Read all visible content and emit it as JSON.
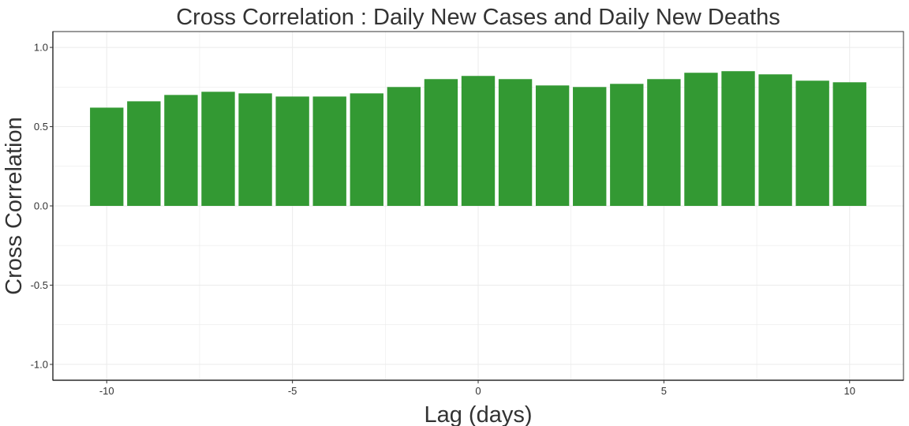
{
  "chart_data": {
    "type": "bar",
    "title": "Cross Correlation : Daily New Cases and Daily New Deaths",
    "xlabel": "Lag (days)",
    "ylabel": "Cross Correlation",
    "x": [
      -10,
      -9,
      -8,
      -7,
      -6,
      -5,
      -4,
      -3,
      -2,
      -1,
      0,
      1,
      2,
      3,
      4,
      5,
      6,
      7,
      8,
      9,
      10
    ],
    "values": [
      0.62,
      0.66,
      0.7,
      0.72,
      0.71,
      0.69,
      0.69,
      0.71,
      0.75,
      0.8,
      0.82,
      0.8,
      0.76,
      0.75,
      0.77,
      0.8,
      0.84,
      0.85,
      0.83,
      0.79,
      0.78
    ],
    "xlim": [
      -11.45,
      11.45
    ],
    "ylim": [
      -1.1,
      1.1
    ],
    "xticks": [
      -10,
      -5,
      0,
      5,
      10
    ],
    "xtick_labels": [
      "-10",
      "-5",
      "0",
      "5",
      "10"
    ],
    "yticks": [
      -1.0,
      -0.5,
      0.0,
      0.5,
      1.0
    ],
    "ytick_labels": [
      "-1.0",
      "-0.5",
      "0.0",
      "0.5",
      "1.0"
    ],
    "grid": true,
    "colors": {
      "bar": "#339933",
      "grid": "#ebebeb",
      "panel_border": "#333333",
      "axis_line": "#000000"
    }
  }
}
